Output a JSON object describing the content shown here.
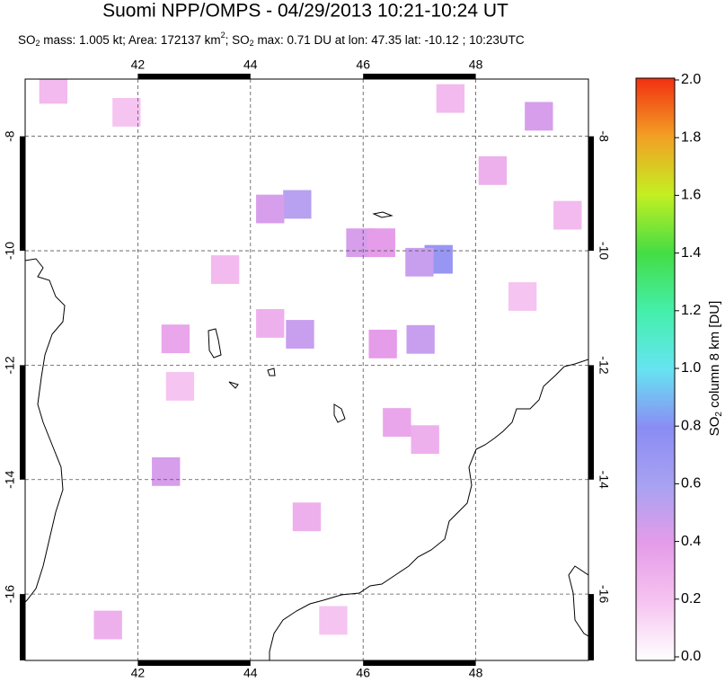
{
  "chart_data": {
    "type": "map",
    "title": "Suomi NPP/OMPS - 04/29/2013 10:21-10:24 UT",
    "subtitle_parts": [
      "SO",
      "2",
      " mass: 1.005 kt; Area: 172137 km",
      "2",
      "; SO",
      "2",
      " max: 0.71 DU at lon: 47.35 lat: -10.12 ; 10:23UTC"
    ],
    "xlim": [
      40,
      50
    ],
    "ylim": [
      -17.16,
      -7.0
    ],
    "xticks": [
      42,
      44,
      46,
      48
    ],
    "yticks": [
      -8,
      -10,
      -12,
      -14,
      -16
    ],
    "grid": true,
    "cells": {
      "lon": [
        44.83,
        44.35,
        47.34,
        47.0,
        45.95,
        46.32,
        44.88,
        46.35,
        47.02,
        42.67,
        42.5,
        49.12,
        48.3,
        46.6,
        47.1,
        41.47,
        45.0,
        44.35,
        43.55,
        49.63,
        40.5,
        41.8,
        42.75,
        48.83,
        45.47,
        47.55
      ],
      "lat": [
        -9.19,
        -9.27,
        -10.15,
        -10.2,
        -9.86,
        -9.86,
        -11.46,
        -11.63,
        -11.55,
        -11.54,
        -13.86,
        -7.65,
        -8.6,
        -13.0,
        -13.3,
        -16.54,
        -14.65,
        -11.27,
        -10.33,
        -9.38,
        -7.18,
        -7.58,
        -12.37,
        -10.8,
        -16.46,
        -7.34
      ],
      "values": [
        0.55,
        0.45,
        0.71,
        0.5,
        0.45,
        0.4,
        0.5,
        0.4,
        0.5,
        0.35,
        0.45,
        0.45,
        0.3,
        0.35,
        0.3,
        0.3,
        0.3,
        0.3,
        0.25,
        0.25,
        0.25,
        0.2,
        0.2,
        0.2,
        0.2,
        0.25
      ]
    },
    "colorbar": {
      "label_parts": [
        "SO",
        "2",
        " column 8 km [DU]"
      ],
      "lim": [
        0,
        2
      ],
      "ticks": [
        {
          "value": 0,
          "label": "0.0"
        },
        0.2,
        0.4,
        0.6,
        0.8,
        {
          "value": 1,
          "label": "1.0"
        },
        1.2,
        1.4,
        1.6,
        1.8,
        {
          "value": 2,
          "label": "2.0"
        }
      ]
    }
  }
}
